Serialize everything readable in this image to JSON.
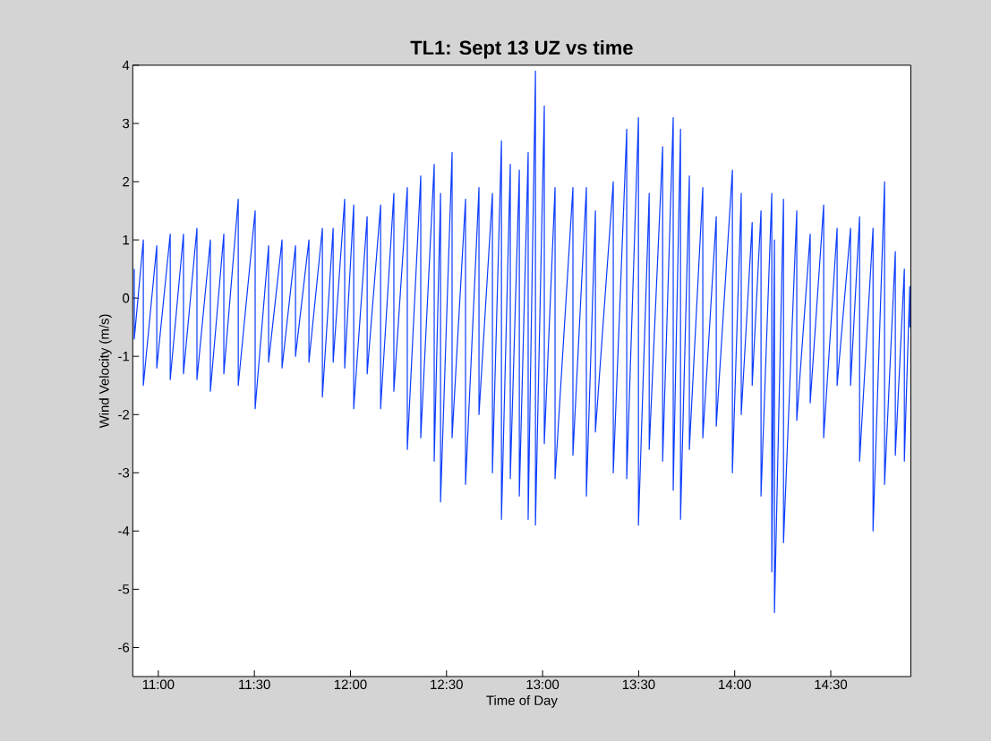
{
  "chart_data": {
    "type": "line",
    "title": "TL1: Sept 13 UZ vs time",
    "xlabel": "Time of Day",
    "ylabel": "Wind Velocity (m/s)",
    "color": "#0a3cff",
    "marker": "none",
    "line_style": "solid",
    "grid": false,
    "xlim": [
      10.867,
      14.917
    ],
    "ylim": [
      -6.5,
      4
    ],
    "xticks": [
      {
        "value": 11,
        "label": "11:00"
      },
      {
        "value": 11.5,
        "label": "11:30"
      },
      {
        "value": 12,
        "label": "12:00"
      },
      {
        "value": 12.5,
        "label": "12:30"
      },
      {
        "value": 13,
        "label": "13:00"
      },
      {
        "value": 13.5,
        "label": "13:30"
      },
      {
        "value": 14,
        "label": "14:00"
      },
      {
        "value": 14.5,
        "label": "14:30"
      }
    ],
    "yticks": [
      -6,
      -5,
      -4,
      -3,
      -2,
      -1,
      0,
      1,
      2,
      3,
      4
    ],
    "x": [
      10.875,
      10.875,
      10.922,
      10.922,
      10.992,
      10.992,
      11.062,
      11.062,
      11.131,
      11.131,
      11.201,
      11.201,
      11.271,
      11.271,
      11.341,
      11.341,
      11.416,
      11.416,
      11.504,
      11.504,
      11.574,
      11.574,
      11.644,
      11.644,
      11.714,
      11.714,
      11.784,
      11.784,
      11.854,
      11.854,
      11.91,
      11.91,
      11.97,
      11.97,
      12.017,
      12.017,
      12.087,
      12.087,
      12.157,
      12.157,
      12.226,
      12.226,
      12.296,
      12.296,
      12.366,
      12.366,
      12.436,
      12.436,
      12.469,
      12.469,
      12.529,
      12.529,
      12.599,
      12.599,
      12.669,
      12.669,
      12.739,
      12.739,
      12.786,
      12.786,
      12.832,
      12.832,
      12.879,
      12.879,
      12.925,
      12.925,
      12.963,
      12.963,
      13.009,
      13.009,
      13.065,
      13.065,
      13.158,
      13.158,
      13.228,
      13.228,
      13.275,
      13.275,
      13.368,
      13.368,
      13.438,
      13.438,
      13.499,
      13.499,
      13.555,
      13.555,
      13.625,
      13.625,
      13.68,
      13.68,
      13.718,
      13.718,
      13.764,
      13.764,
      13.834,
      13.834,
      13.904,
      13.904,
      13.988,
      13.988,
      14.034,
      14.034,
      14.091,
      14.091,
      14.137,
      14.137,
      14.193,
      14.193,
      14.207,
      14.207,
      14.254,
      14.254,
      14.323,
      14.323,
      14.393,
      14.393,
      14.463,
      14.463,
      14.533,
      14.533,
      14.603,
      14.603,
      14.65,
      14.65,
      14.72,
      14.72,
      14.78,
      14.78,
      14.836,
      14.836,
      14.883,
      14.883,
      14.911,
      14.911
    ],
    "values": [
      0.5,
      -0.7,
      1.0,
      -1.5,
      0.9,
      -1.2,
      1.1,
      -1.4,
      1.1,
      -1.3,
      1.2,
      -1.4,
      1.0,
      -1.6,
      1.1,
      -1.3,
      1.7,
      -1.5,
      1.5,
      -1.9,
      0.9,
      -1.1,
      1.0,
      -1.2,
      0.9,
      -1.0,
      1.0,
      -1.1,
      1.2,
      -1.7,
      1.2,
      -1.1,
      1.7,
      -1.2,
      1.6,
      -1.9,
      1.4,
      -1.3,
      1.6,
      -1.9,
      1.8,
      -1.6,
      1.9,
      -2.6,
      2.1,
      -2.4,
      2.3,
      -2.8,
      1.8,
      -3.5,
      2.5,
      -2.4,
      1.7,
      -3.2,
      1.9,
      -2.0,
      1.8,
      -3.0,
      2.7,
      -3.8,
      2.3,
      -3.1,
      2.2,
      -3.4,
      2.5,
      -3.8,
      3.9,
      -3.9,
      3.3,
      -2.5,
      1.9,
      -3.1,
      1.9,
      -2.7,
      1.9,
      -3.4,
      1.5,
      -2.3,
      2.0,
      -3.0,
      2.9,
      -3.1,
      3.1,
      -3.9,
      1.8,
      -2.6,
      2.6,
      -2.8,
      3.1,
      -3.3,
      2.9,
      -3.8,
      2.1,
      -2.6,
      1.9,
      -2.4,
      1.4,
      -2.2,
      2.2,
      -3.0,
      1.8,
      -2.0,
      1.3,
      -1.5,
      1.5,
      -3.4,
      1.8,
      -4.7,
      1.0,
      -5.4,
      1.7,
      -4.2,
      1.5,
      -2.1,
      1.1,
      -1.8,
      1.6,
      -2.4,
      1.2,
      -1.5,
      1.2,
      -1.5,
      1.4,
      -2.8,
      1.2,
      -4.0,
      2.0,
      -3.2,
      0.8,
      -2.7,
      0.5,
      -2.8,
      0.2,
      -0.5
    ]
  }
}
